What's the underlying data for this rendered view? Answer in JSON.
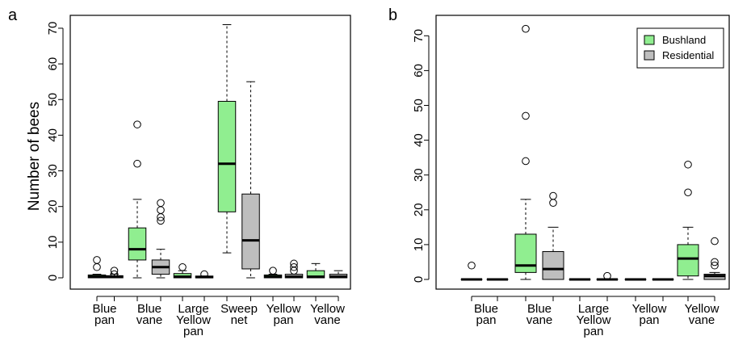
{
  "colors": {
    "bushland": "#90ee90",
    "residential": "#bebebe",
    "axis": "#000000"
  },
  "chart_data": [
    {
      "type": "box",
      "panel_letter": "a",
      "ylabel": "Number of bees",
      "ylim": [
        0,
        71
      ],
      "yticks": [
        0,
        10,
        20,
        30,
        40,
        50,
        60,
        70
      ],
      "categories": [
        [
          "Blue",
          "pan"
        ],
        [
          "Blue",
          "vane"
        ],
        [
          "Large",
          "Yellow",
          "pan"
        ],
        [
          "Sweep",
          "net"
        ],
        [
          "Yellow",
          "pan"
        ],
        [
          "Yellow",
          "vane"
        ]
      ],
      "legend": null,
      "series": [
        {
          "name": "Bushland",
          "boxes": [
            {
              "min": 0,
              "q1": 0,
              "median": 0.3,
              "q3": 0.8,
              "max": 1,
              "outliers": [
                3,
                5
              ]
            },
            {
              "min": 0,
              "q1": 5,
              "median": 8,
              "q3": 14,
              "max": 22,
              "outliers": [
                32,
                43
              ]
            },
            {
              "min": 0,
              "q1": 0,
              "median": 0.3,
              "q3": 1.2,
              "max": 2,
              "outliers": [
                3
              ]
            },
            {
              "min": 7,
              "q1": 18.5,
              "median": 32,
              "q3": 49.5,
              "max": 71,
              "outliers": []
            },
            {
              "min": 0,
              "q1": 0,
              "median": 0.3,
              "q3": 0.8,
              "max": 1,
              "outliers": [
                2
              ]
            },
            {
              "min": 0,
              "q1": 0,
              "median": 0.3,
              "q3": 2,
              "max": 4,
              "outliers": []
            }
          ]
        },
        {
          "name": "Residential",
          "boxes": [
            {
              "min": 0,
              "q1": 0,
              "median": 0.3,
              "q3": 0.6,
              "max": 1,
              "outliers": [
                1,
                2
              ]
            },
            {
              "min": 0,
              "q1": 1,
              "median": 3,
              "q3": 5,
              "max": 8,
              "outliers": [
                16,
                17,
                19,
                21
              ]
            },
            {
              "min": 0,
              "q1": 0,
              "median": 0.2,
              "q3": 0.5,
              "max": 0.5,
              "outliers": [
                1
              ]
            },
            {
              "min": 0,
              "q1": 2.5,
              "median": 10.5,
              "q3": 23.5,
              "max": 55,
              "outliers": []
            },
            {
              "min": 0,
              "q1": 0,
              "median": 0.3,
              "q3": 1,
              "max": 1,
              "outliers": [
                2,
                3,
                4
              ]
            },
            {
              "min": 0,
              "q1": 0,
              "median": 0.3,
              "q3": 1,
              "max": 2,
              "outliers": []
            }
          ]
        }
      ]
    },
    {
      "type": "box",
      "panel_letter": "b",
      "ylabel": "",
      "ylim": [
        0,
        71
      ],
      "yticks": [
        0,
        10,
        20,
        30,
        40,
        50,
        60,
        70
      ],
      "categories": [
        [
          "Blue",
          "pan"
        ],
        [
          "Blue",
          "vane"
        ],
        [
          "Large",
          "Yellow",
          "pan"
        ],
        [
          "Yellow",
          "pan"
        ],
        [
          "Yellow",
          "vane"
        ]
      ],
      "legend": {
        "position": "top-right",
        "entries": [
          "Bushland",
          "Residential"
        ]
      },
      "series": [
        {
          "name": "Bushland",
          "boxes": [
            {
              "min": 0,
              "q1": 0,
              "median": 0,
              "q3": 0,
              "max": 0,
              "outliers": [
                4
              ]
            },
            {
              "min": 0,
              "q1": 2,
              "median": 4,
              "q3": 13,
              "max": 23,
              "outliers": [
                34,
                47,
                72
              ]
            },
            {
              "min": 0,
              "q1": 0,
              "median": 0,
              "q3": 0,
              "max": 0,
              "outliers": []
            },
            {
              "min": 0,
              "q1": 0,
              "median": 0,
              "q3": 0,
              "max": 0,
              "outliers": []
            },
            {
              "min": 0,
              "q1": 1,
              "median": 6,
              "q3": 10,
              "max": 15,
              "outliers": [
                25,
                33
              ]
            }
          ]
        },
        {
          "name": "Residential",
          "boxes": [
            {
              "min": 0,
              "q1": 0,
              "median": 0,
              "q3": 0,
              "max": 0,
              "outliers": []
            },
            {
              "min": 0,
              "q1": 0,
              "median": 3,
              "q3": 8,
              "max": 15,
              "outliers": [
                22,
                24
              ]
            },
            {
              "min": 0,
              "q1": 0,
              "median": 0,
              "q3": 0,
              "max": 0,
              "outliers": [
                1
              ]
            },
            {
              "min": 0,
              "q1": 0,
              "median": 0,
              "q3": 0,
              "max": 0,
              "outliers": []
            },
            {
              "min": 0,
              "q1": 0,
              "median": 1,
              "q3": 1.5,
              "max": 2,
              "outliers": [
                4,
                5,
                11
              ]
            }
          ]
        }
      ]
    }
  ]
}
